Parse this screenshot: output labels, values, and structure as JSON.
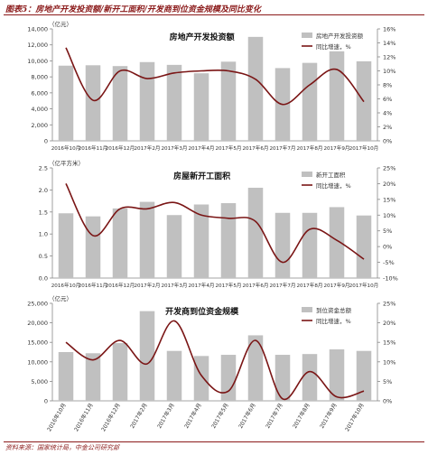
{
  "figure": {
    "title": "图表5：房地产开发投资额/新开工面积/开发商到位资金规模及同比变化",
    "source": "资料来源：国家统计局，中金公司研究部"
  },
  "colors": {
    "bar": "#c0c0c0",
    "line": "#7a1515",
    "title": "#8b1a1a"
  },
  "chart_data": [
    {
      "type": "bar",
      "title": "房地产开发投资额",
      "left_unit": "（亿元）",
      "categories": [
        "2016年10月",
        "2016年11月",
        "2016年12月",
        "2017年2月",
        "2017年3月",
        "2017年4月",
        "2017年5月",
        "2017年6月",
        "2017年7月",
        "2017年8月",
        "2017年9月",
        "2017年10月"
      ],
      "series": [
        {
          "name": "房地产开发投资额",
          "type": "bar",
          "axis": "left",
          "values": [
            9400,
            9450,
            9350,
            9850,
            9500,
            8450,
            9900,
            13000,
            9100,
            9750,
            11200,
            9950
          ]
        },
        {
          "name": "同比增速，%",
          "type": "line",
          "axis": "right",
          "values": [
            13.3,
            5.8,
            10.0,
            8.9,
            9.7,
            10.0,
            10.0,
            8.8,
            5.2,
            8.0,
            10.2,
            5.6
          ]
        }
      ],
      "ylim": [
        0,
        14000
      ],
      "yticks": [
        0,
        2000,
        4000,
        6000,
        8000,
        10000,
        12000,
        14000
      ],
      "ytick_labels": [
        "0",
        "2,000",
        "4,000",
        "6,000",
        "8,000",
        "10,000",
        "12,000",
        "14,000"
      ],
      "y2lim": [
        0,
        16
      ],
      "y2ticks": [
        0,
        2,
        4,
        6,
        8,
        10,
        12,
        14,
        16
      ],
      "y2tick_labels": [
        "0%",
        "2%",
        "4%",
        "6%",
        "8%",
        "10%",
        "12%",
        "14%",
        "16%"
      ],
      "legend": "top-right",
      "rotated_x": false
    },
    {
      "type": "bar",
      "title": "房屋新开工面积",
      "left_unit": "（亿平方米）",
      "categories": [
        "2016年10月",
        "2016年11月",
        "2016年12月",
        "2017年2月",
        "2017年3月",
        "2017年4月",
        "2017年5月",
        "2017年6月",
        "2017年7月",
        "2017年8月",
        "2017年9月",
        "2017年10月"
      ],
      "series": [
        {
          "name": "新开工面积",
          "type": "bar",
          "axis": "left",
          "values": [
            1.47,
            1.4,
            1.58,
            1.73,
            1.43,
            1.67,
            1.7,
            2.05,
            1.48,
            1.48,
            1.61,
            1.42
          ]
        },
        {
          "name": "同比增速，%",
          "type": "line",
          "axis": "right",
          "values": [
            20.0,
            3.5,
            12.0,
            12.0,
            14.0,
            10.0,
            9.0,
            8.0,
            -5.0,
            5.5,
            2.0,
            -4.0
          ]
        }
      ],
      "ylim": [
        0,
        2.5
      ],
      "yticks": [
        0,
        0.5,
        1.0,
        1.5,
        2.0,
        2.5
      ],
      "ytick_labels": [
        "0.0",
        "0.5",
        "1.0",
        "1.5",
        "2.0",
        "2.5"
      ],
      "y2lim": [
        -10,
        25
      ],
      "y2ticks": [
        -10,
        -5,
        0,
        5,
        10,
        15,
        20,
        25
      ],
      "y2tick_labels": [
        "-10%",
        "-5%",
        "0%",
        "5%",
        "10%",
        "15%",
        "20%",
        "25%"
      ],
      "legend": "top-right",
      "rotated_x": false
    },
    {
      "type": "bar",
      "title": "开发商到位资金规模",
      "left_unit": "（亿元）",
      "categories": [
        "2016年10月",
        "2016年11月",
        "2016年12月",
        "2017年2月",
        "2017年3月",
        "2017年4月",
        "2017年5月",
        "2017年6月",
        "2017年7月",
        "2017年8月",
        "2017年9月",
        "2017年10月"
      ],
      "series": [
        {
          "name": "到位资金总额",
          "type": "bar",
          "axis": "left",
          "values": [
            12500,
            12200,
            14800,
            23000,
            12800,
            11500,
            11800,
            16800,
            11800,
            12000,
            13200,
            12800
          ]
        },
        {
          "name": "同比增速，%",
          "type": "line",
          "axis": "right",
          "values": [
            15.0,
            10.5,
            15.5,
            9.5,
            20.5,
            6.5,
            2.5,
            15.5,
            0.5,
            7.5,
            1.0,
            2.5
          ]
        }
      ],
      "ylim": [
        0,
        25000
      ],
      "yticks": [
        0,
        5000,
        10000,
        15000,
        20000,
        25000
      ],
      "ytick_labels": [
        "0",
        "5,000",
        "10,000",
        "15,000",
        "20,000",
        "25,000"
      ],
      "y2lim": [
        0,
        25
      ],
      "y2ticks": [
        0,
        5,
        10,
        15,
        20,
        25
      ],
      "y2tick_labels": [
        "0%",
        "5%",
        "10%",
        "15%",
        "20%",
        "25%"
      ],
      "legend": "top-right",
      "rotated_x": true
    }
  ]
}
